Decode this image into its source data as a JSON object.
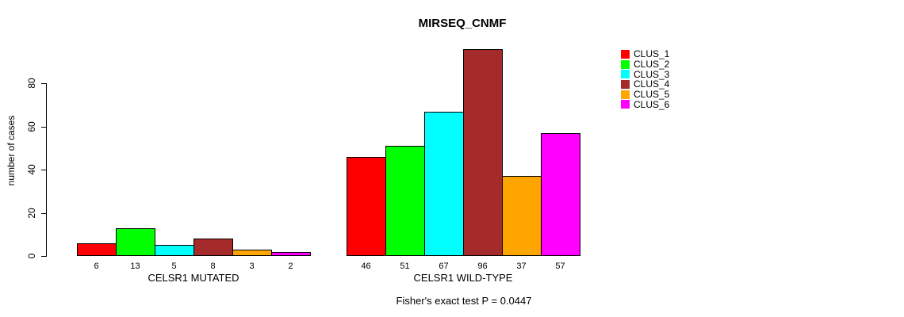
{
  "chart_data": {
    "type": "bar",
    "title": "MIRSEQ_CNMF",
    "ylabel": "number of cases",
    "xlabel": "",
    "yticks": [
      0,
      20,
      40,
      60,
      80
    ],
    "grid": false,
    "legend_position": "right",
    "footnote": "Fisher's exact test P = 0.0447",
    "series": [
      {
        "name": "CLUS_1",
        "color": "#FF0000"
      },
      {
        "name": "CLUS_2",
        "color": "#00FF00"
      },
      {
        "name": "CLUS_3",
        "color": "#00FFFF"
      },
      {
        "name": "CLUS_4",
        "color": "#A52A2A"
      },
      {
        "name": "CLUS_5",
        "color": "#FFA500"
      },
      {
        "name": "CLUS_6",
        "color": "#FF00FF"
      }
    ],
    "groups": [
      {
        "label": "CELSR1 MUTATED",
        "values": [
          6,
          13,
          5,
          8,
          3,
          2
        ]
      },
      {
        "label": "CELSR1 WILD-TYPE",
        "values": [
          46,
          51,
          67,
          96,
          37,
          57
        ]
      }
    ]
  }
}
